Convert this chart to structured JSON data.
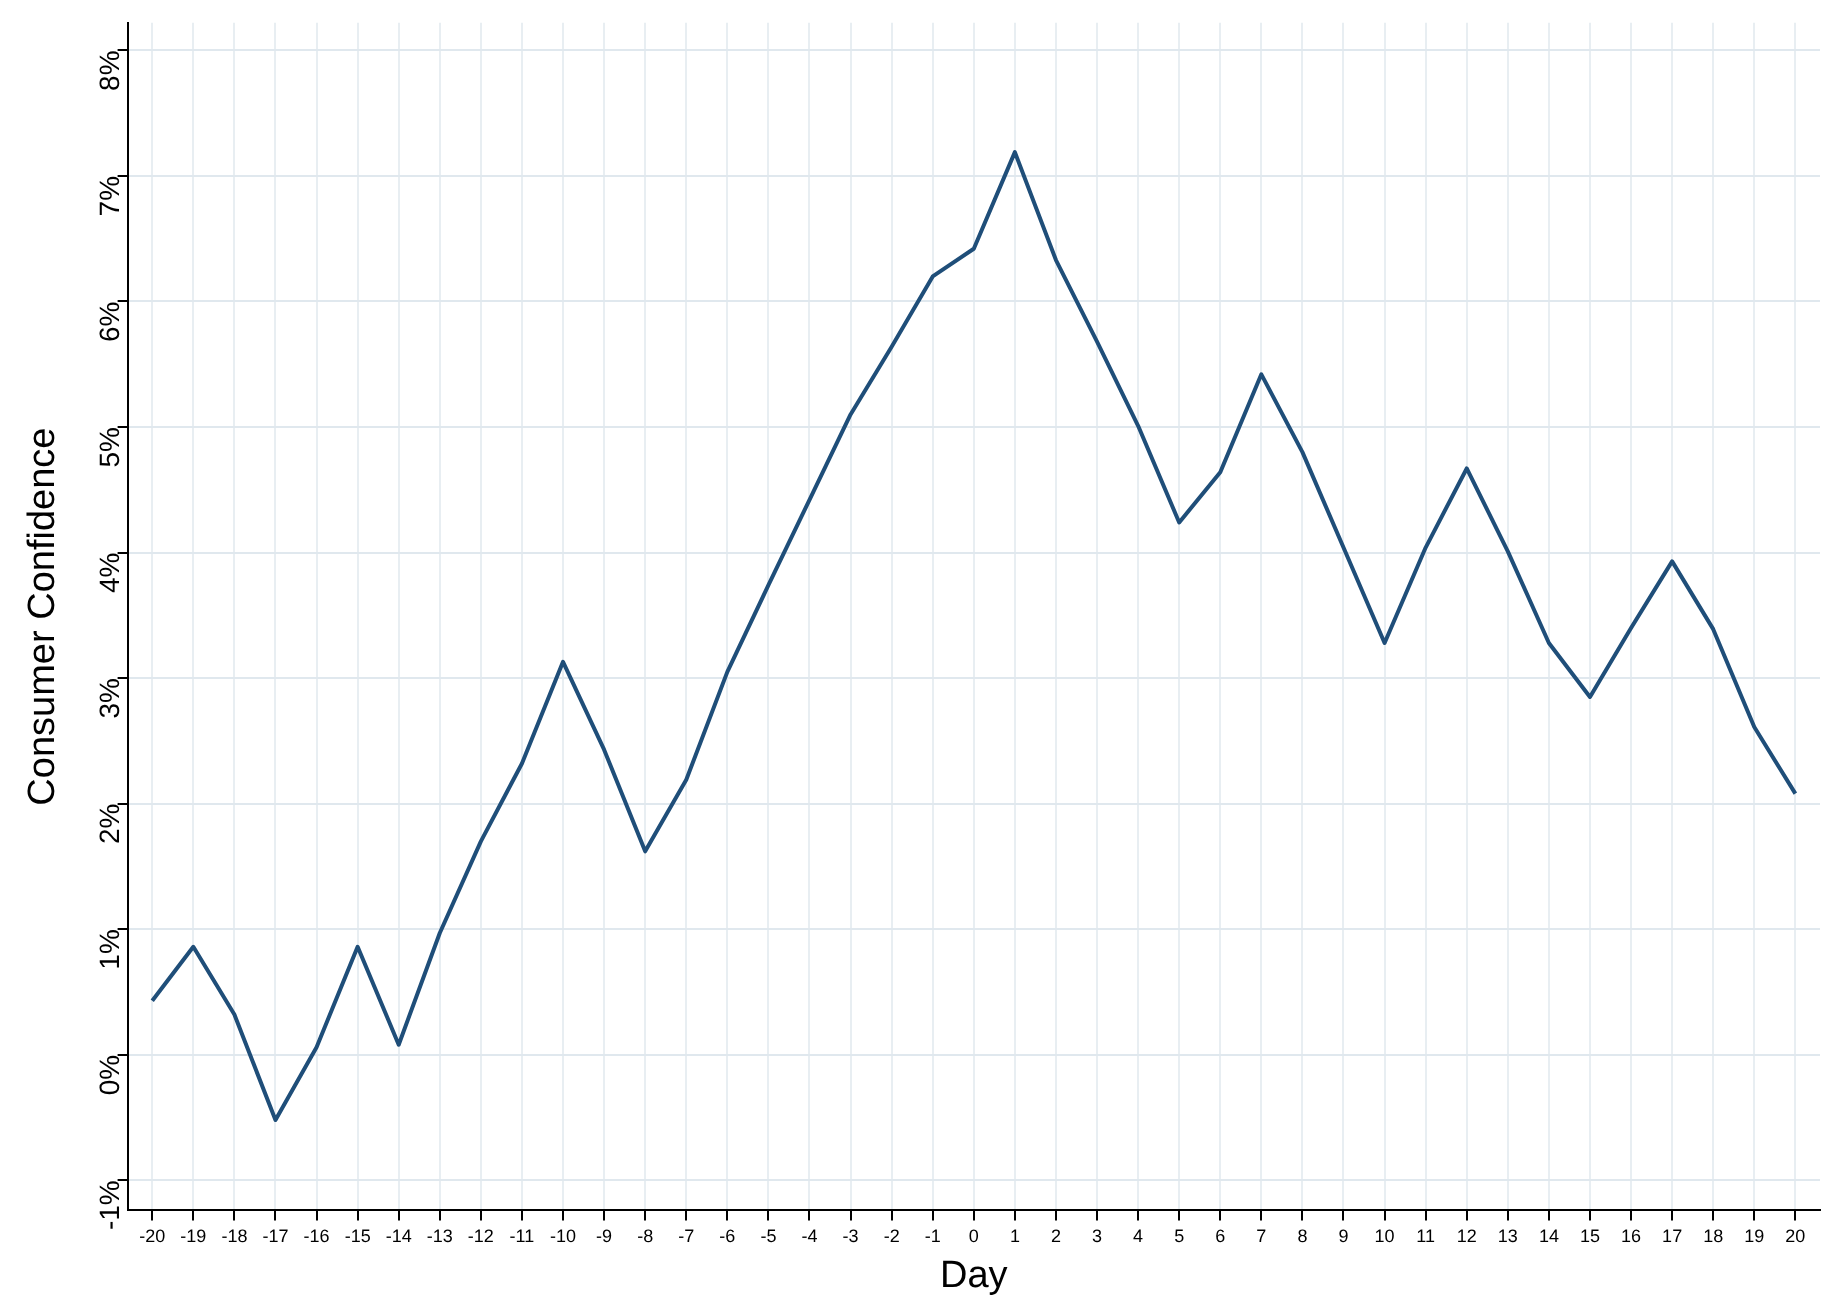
{
  "chart_data": {
    "type": "line",
    "xlabel": "Day",
    "ylabel": "Consumer Confidence",
    "x": [
      -20,
      -19,
      -18,
      -17,
      -16,
      -15,
      -14,
      -13,
      -12,
      -11,
      -10,
      -9,
      -8,
      -7,
      -6,
      -5,
      -4,
      -3,
      -2,
      -1,
      0,
      1,
      2,
      3,
      4,
      5,
      6,
      7,
      8,
      9,
      10,
      11,
      12,
      13,
      14,
      15,
      16,
      17,
      18,
      19,
      20
    ],
    "series": [
      {
        "color": "#1f4e79",
        "values": [
          0.43,
          0.86,
          0.32,
          -0.52,
          0.06,
          0.86,
          0.08,
          0.97,
          1.7,
          2.32,
          3.13,
          2.43,
          1.62,
          2.19,
          3.05,
          3.74,
          4.42,
          5.1,
          5.64,
          6.2,
          6.42,
          7.19,
          6.33,
          5.68,
          5.01,
          4.24,
          4.64,
          5.42,
          4.8,
          4.04,
          3.28,
          4.04,
          4.67,
          4.01,
          3.28,
          2.85,
          3.4,
          3.93,
          3.39,
          2.61,
          2.08
        ]
      }
    ],
    "xlim": [
      -20.6,
      20.6
    ],
    "xticks": [
      -20,
      -19,
      -18,
      -17,
      -16,
      -15,
      -14,
      -13,
      -12,
      -11,
      -10,
      -9,
      -8,
      -7,
      -6,
      -5,
      -4,
      -3,
      -2,
      -1,
      0,
      1,
      2,
      3,
      4,
      5,
      6,
      7,
      8,
      9,
      10,
      11,
      12,
      13,
      14,
      15,
      16,
      17,
      18,
      19,
      20
    ],
    "ylim": [
      -1.24,
      8.22
    ],
    "yticks": [
      {
        "value": -1,
        "label": "-1%"
      },
      {
        "value": 0,
        "label": "0%"
      },
      {
        "value": 1,
        "label": "1%"
      },
      {
        "value": 2,
        "label": "2%"
      },
      {
        "value": 3,
        "label": "3%"
      },
      {
        "value": 4,
        "label": "4%"
      },
      {
        "value": 5,
        "label": "5%"
      },
      {
        "value": 6,
        "label": "6%"
      },
      {
        "value": 7,
        "label": "7%"
      },
      {
        "value": 8,
        "label": "8%"
      }
    ],
    "grid": true,
    "legend": false,
    "marker": "none",
    "line_style": "solid"
  }
}
